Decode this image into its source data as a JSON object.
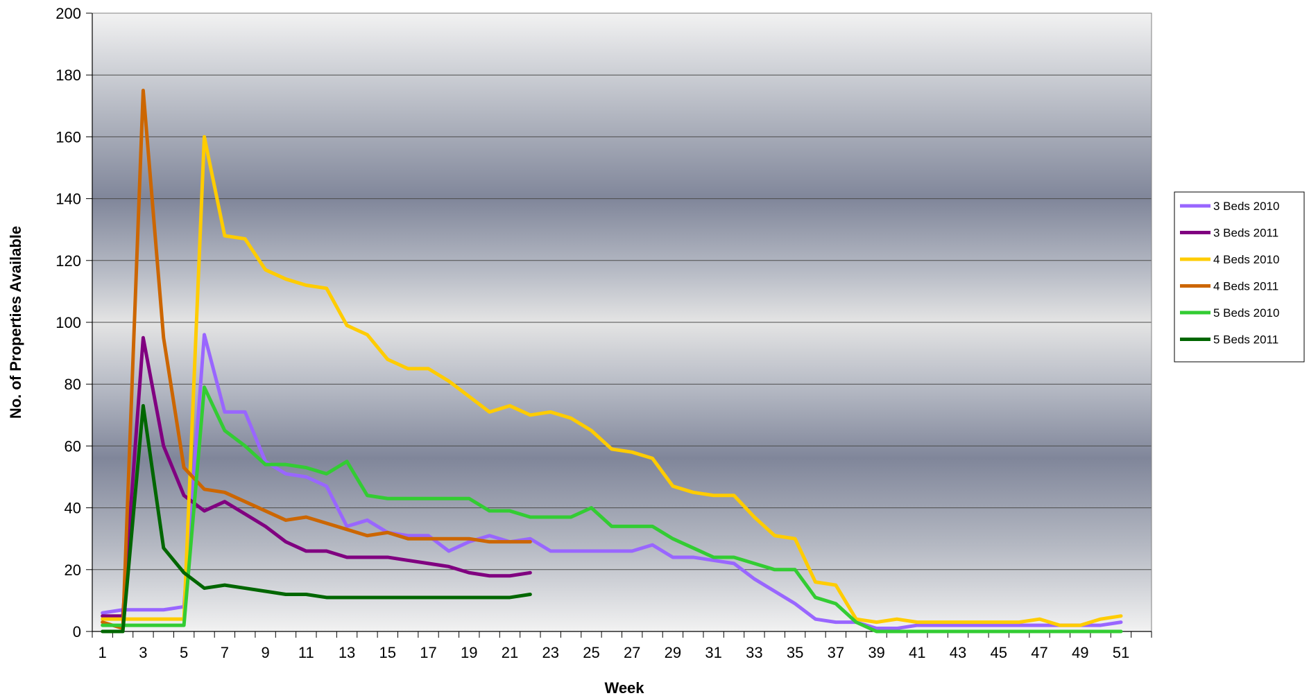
{
  "chart_data": {
    "type": "line",
    "title": "",
    "xlabel": "Week",
    "ylabel": "No. of Properties Available",
    "xlim": [
      1,
      52
    ],
    "ylim": [
      0,
      200
    ],
    "y_ticks": [
      0,
      20,
      40,
      60,
      80,
      100,
      120,
      140,
      160,
      180,
      200
    ],
    "x_tick_labels": [
      1,
      3,
      5,
      7,
      9,
      11,
      13,
      15,
      17,
      19,
      21,
      23,
      25,
      27,
      29,
      31,
      33,
      35,
      37,
      39,
      41,
      43,
      45,
      47,
      49,
      51
    ],
    "grid": true,
    "legend_position": "right",
    "series": [
      {
        "name": "3 Beds 2010",
        "color": "#9966ff",
        "x": [
          1,
          2,
          3,
          4,
          5,
          6,
          7,
          8,
          9,
          10,
          11,
          12,
          13,
          14,
          15,
          16,
          17,
          18,
          19,
          20,
          21,
          22,
          23,
          24,
          25,
          26,
          27,
          28,
          29,
          30,
          31,
          32,
          33,
          34,
          35,
          36,
          37,
          38,
          39,
          40,
          41,
          42,
          43,
          44,
          45,
          46,
          47,
          48,
          49,
          50,
          51
        ],
        "values": [
          6,
          7,
          7,
          7,
          8,
          96,
          71,
          71,
          55,
          51,
          50,
          47,
          34,
          36,
          32,
          31,
          31,
          26,
          29,
          31,
          29,
          30,
          26,
          26,
          26,
          26,
          26,
          28,
          24,
          24,
          23,
          22,
          17,
          13,
          9,
          4,
          3,
          3,
          1,
          1,
          2,
          2,
          2,
          2,
          2,
          2,
          2,
          2,
          2,
          2,
          3
        ]
      },
      {
        "name": "3 Beds 2011",
        "color": "#800080",
        "x": [
          1,
          2,
          3,
          4,
          5,
          6,
          7,
          8,
          9,
          10,
          11,
          12,
          13,
          14,
          15,
          16,
          17,
          18,
          19,
          20,
          21,
          22
        ],
        "values": [
          5,
          5,
          95,
          60,
          44,
          39,
          42,
          38,
          34,
          29,
          26,
          26,
          24,
          24,
          24,
          23,
          22,
          21,
          19,
          18,
          18,
          19
        ]
      },
      {
        "name": "4 Beds 2010",
        "color": "#ffcc00",
        "x": [
          1,
          2,
          3,
          4,
          5,
          6,
          7,
          8,
          9,
          10,
          11,
          12,
          13,
          14,
          15,
          16,
          17,
          18,
          19,
          20,
          21,
          22,
          23,
          24,
          25,
          26,
          27,
          28,
          29,
          30,
          31,
          32,
          33,
          34,
          35,
          36,
          37,
          38,
          39,
          40,
          41,
          42,
          43,
          44,
          45,
          46,
          47,
          48,
          49,
          50,
          51
        ],
        "values": [
          4,
          4,
          4,
          4,
          4,
          160,
          128,
          127,
          117,
          114,
          112,
          111,
          99,
          96,
          88,
          85,
          85,
          81,
          76,
          71,
          73,
          70,
          71,
          69,
          65,
          59,
          58,
          56,
          47,
          45,
          44,
          44,
          37,
          31,
          30,
          16,
          15,
          4,
          3,
          4,
          3,
          3,
          3,
          3,
          3,
          3,
          4,
          2,
          2,
          4,
          5
        ]
      },
      {
        "name": "4 Beds 2011",
        "color": "#cc6600",
        "x": [
          1,
          2,
          3,
          4,
          5,
          6,
          7,
          8,
          9,
          10,
          11,
          12,
          13,
          14,
          15,
          16,
          17,
          18,
          19,
          20,
          21,
          22
        ],
        "values": [
          3,
          1,
          175,
          95,
          53,
          46,
          45,
          42,
          39,
          36,
          37,
          35,
          33,
          31,
          32,
          30,
          30,
          30,
          30,
          29,
          29,
          29
        ]
      },
      {
        "name": "5 Beds 2010",
        "color": "#33cc33",
        "x": [
          1,
          2,
          3,
          4,
          5,
          6,
          7,
          8,
          9,
          10,
          11,
          12,
          13,
          14,
          15,
          16,
          17,
          18,
          19,
          20,
          21,
          22,
          23,
          24,
          25,
          26,
          27,
          28,
          29,
          30,
          31,
          32,
          33,
          34,
          35,
          36,
          37,
          38,
          39,
          40,
          41,
          42,
          43,
          44,
          45,
          46,
          47,
          48,
          49,
          50,
          51
        ],
        "values": [
          2,
          2,
          2,
          2,
          2,
          79,
          65,
          60,
          54,
          54,
          53,
          51,
          55,
          44,
          43,
          43,
          43,
          43,
          43,
          39,
          39,
          37,
          37,
          37,
          40,
          34,
          34,
          34,
          30,
          27,
          24,
          24,
          22,
          20,
          20,
          11,
          9,
          3,
          0,
          0,
          0,
          0,
          0,
          0,
          0,
          0,
          0,
          0,
          0,
          0,
          0
        ]
      },
      {
        "name": "5 Beds 2011",
        "color": "#006600",
        "x": [
          1,
          2,
          3,
          4,
          5,
          6,
          7,
          8,
          9,
          10,
          11,
          12,
          13,
          14,
          15,
          16,
          17,
          18,
          19,
          20,
          21,
          22
        ],
        "values": [
          0,
          0,
          73,
          27,
          19,
          14,
          15,
          14,
          13,
          12,
          12,
          11,
          11,
          11,
          11,
          11,
          11,
          11,
          11,
          11,
          11,
          12
        ]
      }
    ]
  }
}
